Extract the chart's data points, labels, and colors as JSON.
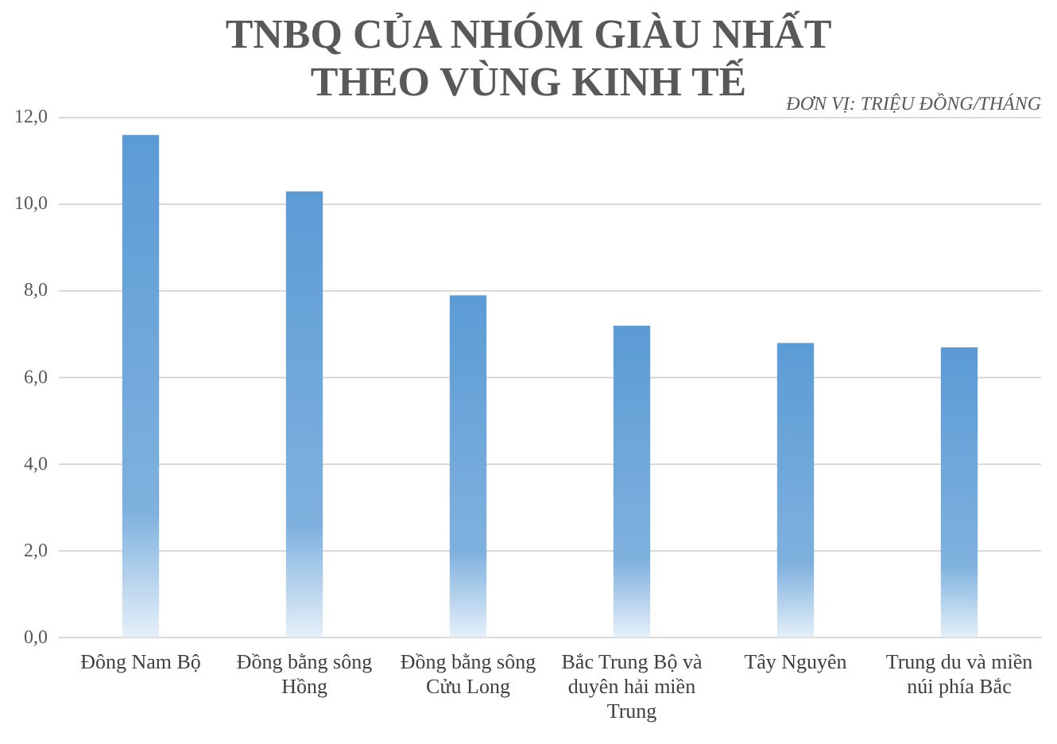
{
  "chart_data": {
    "type": "bar",
    "title": "TNBQ CỦA NHÓM GIÀU NHẤT THEO VÙNG KINH TẾ",
    "subtitle": "ĐƠN VỊ: TRIỆU ĐỒNG/THÁNG",
    "categories": [
      "Đông Nam Bộ",
      "Đồng bằng sông Hồng",
      "Đồng bằng sông Cửu Long",
      "Bắc Trung Bộ và duyên hải miền Trung",
      "Tây Nguyên",
      "Trung du và miền núi phía Bắc"
    ],
    "values": [
      11.6,
      10.3,
      7.9,
      7.2,
      6.8,
      6.7
    ],
    "color": "#5b9bd5",
    "ylim": [
      0,
      12
    ],
    "yticks": [
      {
        "value": 0,
        "label": "0,0"
      },
      {
        "value": 2,
        "label": "2,0"
      },
      {
        "value": 4,
        "label": "4,0"
      },
      {
        "value": 6,
        "label": "6,0"
      },
      {
        "value": 8,
        "label": "8,0"
      },
      {
        "value": 10,
        "label": "10,0"
      },
      {
        "value": 12,
        "label": "12,0"
      }
    ],
    "grid": "y"
  }
}
